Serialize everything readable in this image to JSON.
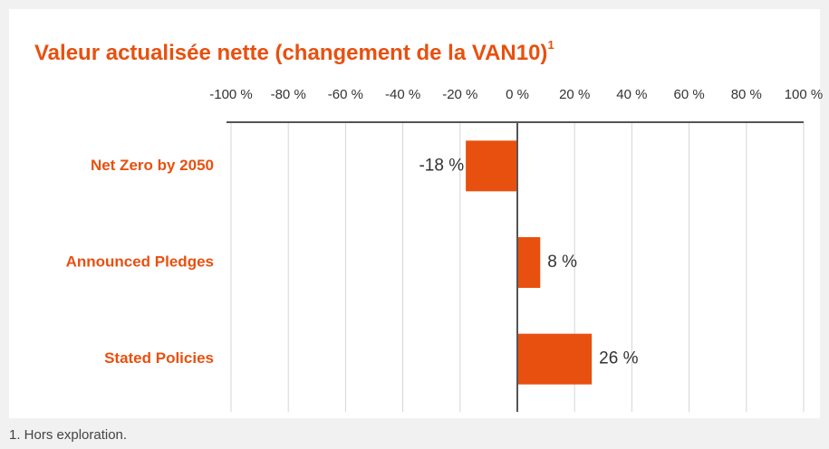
{
  "chart_data": {
    "type": "hbar",
    "title": "Valeur actualisée nette (changement de la VAN10)",
    "title_superscript": "1",
    "footnote": "1. Hors exploration.",
    "categories": [
      "Net Zero by 2050",
      "Announced Pledges",
      "Stated Policies"
    ],
    "values": [
      -18,
      8,
      26
    ],
    "value_labels": [
      "-18 %",
      "8 %",
      "26 %"
    ],
    "color": "#e8500f",
    "xlim": [
      -100,
      100
    ],
    "xticks": [
      {
        "value": -100,
        "label": "-100 %"
      },
      {
        "value": -80,
        "label": "-80 %"
      },
      {
        "value": -60,
        "label": "-60 %"
      },
      {
        "value": -40,
        "label": "-40 %"
      },
      {
        "value": -20,
        "label": "-20 %"
      },
      {
        "value": 0,
        "label": "0 %"
      },
      {
        "value": 20,
        "label": "20 %"
      },
      {
        "value": 40,
        "label": "40 %"
      },
      {
        "value": 60,
        "label": "60 %"
      },
      {
        "value": 80,
        "label": "80 %"
      },
      {
        "value": 100,
        "label": "100 %"
      }
    ],
    "grid": true
  }
}
